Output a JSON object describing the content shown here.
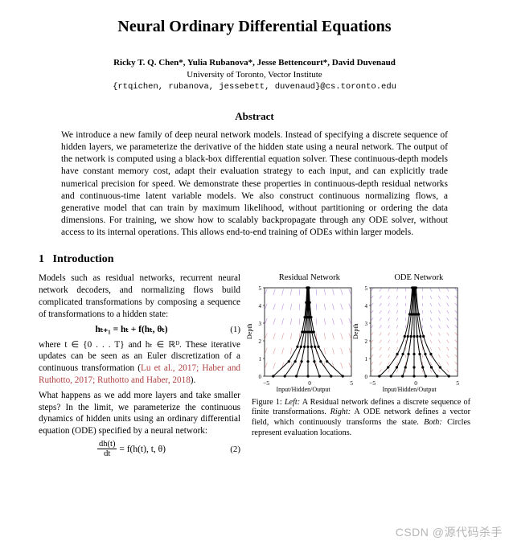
{
  "title": "Neural Ordinary Differential Equations",
  "authors": {
    "names": "Ricky T. Q. Chen*, Yulia Rubanova*, Jesse Bettencourt*, David Duvenaud",
    "affiliation": "University of Toronto, Vector Institute",
    "emails": "{rtqichen, rubanova, jessebett, duvenaud}@cs.toronto.edu"
  },
  "abstract_heading": "Abstract",
  "abstract": "We introduce a new family of deep neural network models. Instead of specifying a discrete sequence of hidden layers, we parameterize the derivative of the hidden state using a neural network. The output of the network is computed using a black-box differential equation solver. These continuous-depth models have constant memory cost, adapt their evaluation strategy to each input, and can explicitly trade numerical precision for speed. We demonstrate these properties in continuous-depth residual networks and continuous-time latent variable models. We also construct continuous normalizing flows, a generative model that can train by maximum likelihood, without partitioning or ordering the data dimensions. For training, we show how to scalably backpropagate through any ODE solver, without access to its internal operations. This allows end-to-end training of ODEs within larger models.",
  "section1": {
    "number": "1",
    "title": "Introduction",
    "p1": "Models such as residual networks, recurrent neural network decoders, and normalizing flows build complicated transformations by composing a sequence of transformations to a hidden state:",
    "eq1": "hₜ₊₁ = hₜ + f(hₜ, θₜ)",
    "eq1_num": "(1)",
    "p2a": "where t ∈ {0 . . . T} and hₜ ∈ ℝᴰ. These iterative updates can be seen as an Euler discretization of a continuous transformation (",
    "cite": "Lu et al., 2017; Haber and Ruthotto, 2017; Ruthotto and Haber, 2018",
    "p2b": ").",
    "p3": "What happens as we add more layers and take smaller steps? In the limit, we parameterize the continuous dynamics of hidden units using an ordinary differential equation (ODE) specified by a neural network:",
    "eq2_top": "dh(t)",
    "eq2_bot": "dt",
    "eq2_rhs": " = f(h(t), t, θ)",
    "eq2_num": "(2)"
  },
  "figure1": {
    "left_title": "Residual Network",
    "right_title": "ODE Network",
    "ylabel": "Depth",
    "xlabel": "Input/Hidden/Output",
    "xticks": [
      "−5",
      "0",
      "5"
    ],
    "yticks_left": [
      "0",
      "1",
      "2",
      "3",
      "4",
      "5"
    ],
    "yticks_right": [
      "0",
      "1",
      "2",
      "3",
      "4",
      "5"
    ],
    "plot": {
      "width": 120,
      "height": 120,
      "vf_color_top": "#9e5bd8",
      "vf_color_bot": "#d86a6a",
      "traj_color": "#000000",
      "axis_color": "#000000",
      "n_traj": 7,
      "n_layers_left": 6,
      "xlim": [
        -5,
        5
      ],
      "ylim": [
        0,
        5
      ]
    },
    "caption_lead": "Figure 1: ",
    "caption_a": "Left:",
    "caption_a_txt": " A Residual network defines a discrete sequence of finite transformations. ",
    "caption_b": "Right:",
    "caption_b_txt": " A ODE network defines a vector field, which continuously transforms the state. ",
    "caption_c": "Both:",
    "caption_c_txt": " Circles represent evaluation locations."
  },
  "watermark": "CSDN @源代码杀手"
}
